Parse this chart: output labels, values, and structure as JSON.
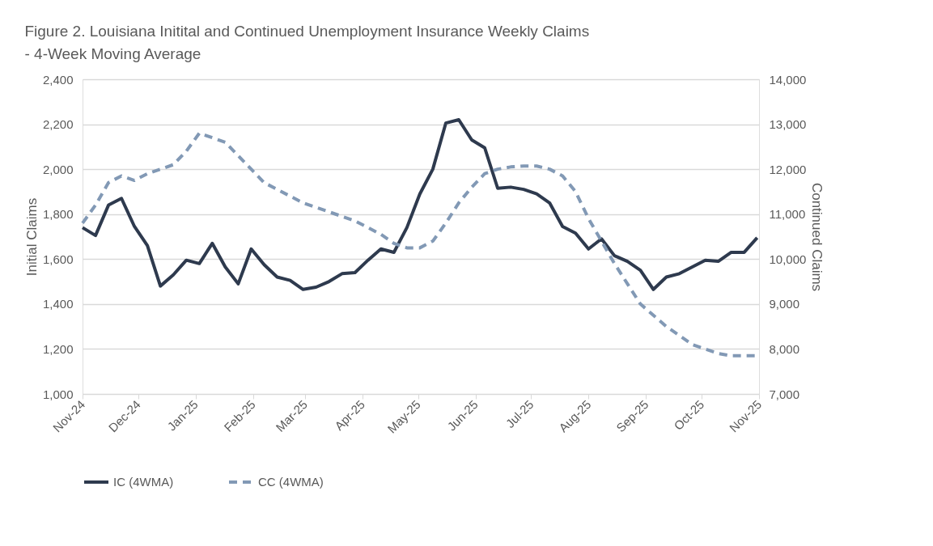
{
  "chart_data": {
    "type": "line",
    "title": "Figure 2. Louisiana Initital and Continued Unemployment Insurance Weekly Claims",
    "subtitle": "- 4-Week Moving Average",
    "ylabel": "Initial Claims",
    "y2label": "Continued Claims",
    "x": [
      "2024-11-01",
      "2024-11-08",
      "2024-11-15",
      "2024-11-22",
      "2024-11-29",
      "2024-12-06",
      "2024-12-13",
      "2024-12-20",
      "2024-12-27",
      "2025-01-03",
      "2025-01-10",
      "2025-01-17",
      "2025-01-24",
      "2025-01-31",
      "2025-02-07",
      "2025-02-14",
      "2025-02-21",
      "2025-02-28",
      "2025-03-07",
      "2025-03-14",
      "2025-03-21",
      "2025-03-28",
      "2025-04-04",
      "2025-04-11",
      "2025-04-18",
      "2025-04-25",
      "2025-05-02",
      "2025-05-09",
      "2025-05-16",
      "2025-05-23",
      "2025-05-30",
      "2025-06-06",
      "2025-06-13",
      "2025-06-20",
      "2025-06-27",
      "2025-07-04",
      "2025-07-11",
      "2025-07-18",
      "2025-07-25",
      "2025-08-01",
      "2025-08-08",
      "2025-08-15",
      "2025-08-22",
      "2025-08-29",
      "2025-09-05",
      "2025-09-12",
      "2025-09-19",
      "2025-09-26",
      "2025-10-03",
      "2025-10-10",
      "2025-10-17",
      "2025-10-24",
      "2025-10-31"
    ],
    "series": [
      {
        "name": "IC (4WMA)",
        "color": "#2e3a4e",
        "line_style": "solid",
        "values": [
          1740,
          1705,
          1840,
          1870,
          1745,
          1660,
          1480,
          1530,
          1595,
          1580,
          1670,
          1565,
          1490,
          1645,
          1575,
          1520,
          1505,
          1465,
          1475,
          1500,
          1535,
          1540,
          1595,
          1645,
          1630,
          1740,
          1890,
          2000,
          2205,
          2220,
          2130,
          2095,
          1915,
          1920,
          1910,
          1890,
          1850,
          1745,
          1715,
          1645,
          1690,
          1615,
          1590,
          1550,
          1465,
          1520,
          1535,
          1565,
          1595,
          1590,
          1630,
          1630,
          1695
        ]
      },
      {
        "name": "CC (4WMA)",
        "color": "#8299b5",
        "line_style": "dashed",
        "axis": "y2",
        "values": [
          10800,
          11200,
          11700,
          11850,
          11750,
          11900,
          12000,
          12100,
          12400,
          12800,
          12700,
          12600,
          12300,
          12000,
          11700,
          11550,
          11400,
          11250,
          11150,
          11050,
          10950,
          10850,
          10700,
          10550,
          10350,
          10250,
          10250,
          10400,
          10800,
          11250,
          11600,
          11900,
          12000,
          12050,
          12070,
          12070,
          12000,
          11850,
          11500,
          10900,
          10400,
          9900,
          9450,
          9000,
          8750,
          8500,
          8300,
          8100,
          8000,
          7900,
          7850,
          7850,
          7850
        ]
      }
    ],
    "xlim": [
      "2024-11-01",
      "2025-11-01"
    ],
    "xticks": [
      {
        "value": "2024-11-01",
        "label": "Nov-24"
      },
      {
        "value": "2024-12-01",
        "label": "Dec-24"
      },
      {
        "value": "2025-01-01",
        "label": "Jan-25"
      },
      {
        "value": "2025-02-01",
        "label": "Feb-25"
      },
      {
        "value": "2025-03-01",
        "label": "Mar-25"
      },
      {
        "value": "2025-04-01",
        "label": "Apr-25"
      },
      {
        "value": "2025-05-01",
        "label": "May-25"
      },
      {
        "value": "2025-06-01",
        "label": "Jun-25"
      },
      {
        "value": "2025-07-01",
        "label": "Jul-25"
      },
      {
        "value": "2025-08-01",
        "label": "Aug-25"
      },
      {
        "value": "2025-09-01",
        "label": "Sep-25"
      },
      {
        "value": "2025-10-01",
        "label": "Oct-25"
      },
      {
        "value": "2025-11-01",
        "label": "Nov-25"
      }
    ],
    "ylim": [
      1000,
      2400
    ],
    "yticks": [
      {
        "value": 1000,
        "label": "1,000"
      },
      {
        "value": 1200,
        "label": "1,200"
      },
      {
        "value": 1400,
        "label": "1,400"
      },
      {
        "value": 1600,
        "label": "1,600"
      },
      {
        "value": 1800,
        "label": "1,800"
      },
      {
        "value": 2000,
        "label": "2,000"
      },
      {
        "value": 2200,
        "label": "2,200"
      },
      {
        "value": 2400,
        "label": "2,400"
      }
    ],
    "y2lim": [
      7000,
      14000
    ],
    "y2ticks": [
      {
        "value": 7000,
        "label": "7,000"
      },
      {
        "value": 8000,
        "label": "8,000"
      },
      {
        "value": 9000,
        "label": "9,000"
      },
      {
        "value": 10000,
        "label": "10,000"
      },
      {
        "value": 11000,
        "label": "11,000"
      },
      {
        "value": 12000,
        "label": "12,000"
      },
      {
        "value": 13000,
        "label": "13,000"
      },
      {
        "value": 14000,
        "label": "14,000"
      }
    ],
    "grid": "y",
    "legend": "bottom",
    "marker": "none"
  }
}
